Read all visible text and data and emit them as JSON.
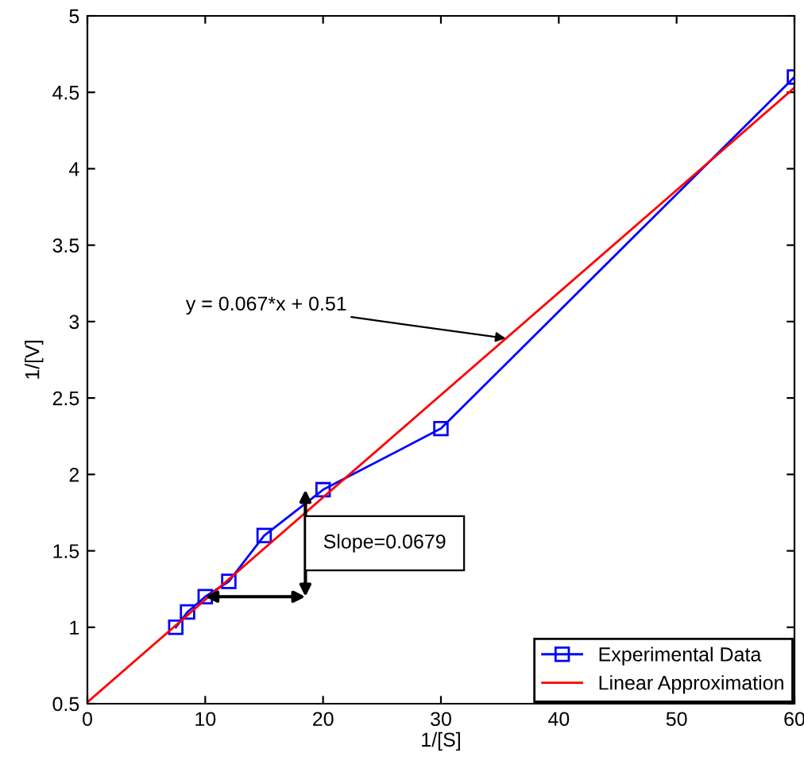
{
  "chart_data": {
    "type": "line",
    "xlabel": "1/[S]",
    "ylabel": "1/[V]",
    "xlim": [
      0,
      60
    ],
    "ylim": [
      0.5,
      5
    ],
    "xticks": [
      0,
      10,
      20,
      30,
      40,
      50,
      60
    ],
    "yticks": [
      0.5,
      1,
      1.5,
      2,
      2.5,
      3,
      3.5,
      4,
      4.5,
      5
    ],
    "grid": false,
    "legend": "bottom right",
    "series": [
      {
        "name": "Experimental Data",
        "color": "#0000ff",
        "marker": "square",
        "x": [
          7.5,
          8.5,
          10,
          12,
          15,
          20,
          30,
          60
        ],
        "values": [
          1.0,
          1.1,
          1.2,
          1.3,
          1.6,
          1.9,
          2.3,
          4.6
        ]
      },
      {
        "name": "Linear Approximation",
        "color": "#ff0000",
        "marker": "none",
        "x": [
          0,
          60
        ],
        "values": [
          0.51,
          4.53
        ]
      }
    ],
    "annotations": [
      {
        "text": "y = 0.067*x + 0.51",
        "x": 35.5,
        "y": 2.89
      },
      "Slope=0.0679"
    ]
  }
}
